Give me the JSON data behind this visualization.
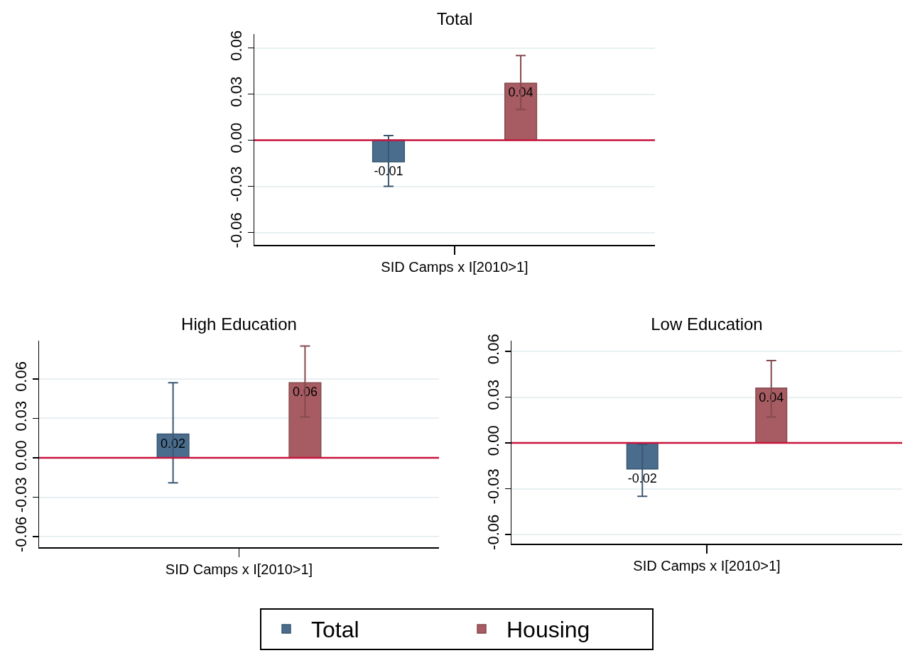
{
  "chart_data": [
    {
      "type": "bar",
      "title": "Total",
      "categories": [
        "SID Camps x I[2010>1]"
      ],
      "ylim": [
        -0.068,
        0.069
      ],
      "yticks": [
        {
          "value": -0.06,
          "label": "-0.06"
        },
        {
          "value": -0.03,
          "label": "-0.03"
        },
        {
          "value": 0,
          "label": "0.00"
        },
        {
          "value": 0.03,
          "label": "0.03"
        },
        {
          "value": 0.06,
          "label": "0.06"
        }
      ],
      "grid": "y",
      "legend": false,
      "series": [
        {
          "color": "#4a6d8e",
          "values": [
            -0.014
          ],
          "errors": [
            [
              -0.03,
              0.003
            ]
          ],
          "value_labels": [
            "-0.01"
          ]
        },
        {
          "color": "#a65c62",
          "values": [
            0.037
          ],
          "errors": [
            [
              0.02,
              0.055
            ]
          ],
          "value_labels": [
            "0.04"
          ]
        }
      ],
      "ref_lines": [
        {
          "axis": "y",
          "value": 0,
          "color": "#c8143c"
        }
      ]
    },
    {
      "type": "bar",
      "title": "High Education",
      "categories": [
        "SID Camps x I[2010>1]"
      ],
      "ylim": [
        -0.068,
        0.089
      ],
      "yticks": [
        {
          "value": -0.06,
          "label": "-0.06"
        },
        {
          "value": -0.03,
          "label": "-0.03"
        },
        {
          "value": 0,
          "label": "0.00"
        },
        {
          "value": 0.03,
          "label": "0.03"
        },
        {
          "value": 0.06,
          "label": "0.06"
        }
      ],
      "grid": "y",
      "legend": false,
      "series": [
        {
          "color": "#4a6d8e",
          "values": [
            0.018
          ],
          "errors": [
            [
              -0.019,
              0.057
            ]
          ],
          "value_labels": [
            "0.02"
          ]
        },
        {
          "color": "#a65c62",
          "values": [
            0.057
          ],
          "errors": [
            [
              0.031,
              0.085
            ]
          ],
          "value_labels": [
            "0.06"
          ]
        }
      ],
      "ref_lines": [
        {
          "axis": "y",
          "value": 0,
          "color": "#c8143c"
        }
      ]
    },
    {
      "type": "bar",
      "title": "Low Education",
      "categories": [
        "SID Camps x I[2010>1]"
      ],
      "ylim": [
        -0.066,
        0.067
      ],
      "yticks": [
        {
          "value": -0.06,
          "label": "-0.06"
        },
        {
          "value": -0.03,
          "label": "-0.03"
        },
        {
          "value": 0,
          "label": "0.00"
        },
        {
          "value": 0.03,
          "label": "0.03"
        },
        {
          "value": 0.06,
          "label": "0.06"
        }
      ],
      "grid": "y",
      "legend": "bottom",
      "series": [
        {
          "name": "Total",
          "color": "#4a6d8e",
          "values": [
            -0.017
          ],
          "errors": [
            [
              -0.035,
              -0.001
            ]
          ],
          "value_labels": [
            "-0.02"
          ]
        },
        {
          "name": "Housing",
          "color": "#a65c62",
          "values": [
            0.036
          ],
          "errors": [
            [
              0.017,
              0.054
            ]
          ],
          "value_labels": [
            "0.04"
          ]
        }
      ],
      "ref_lines": [
        {
          "axis": "y",
          "value": 0,
          "color": "#c8143c"
        }
      ]
    }
  ]
}
